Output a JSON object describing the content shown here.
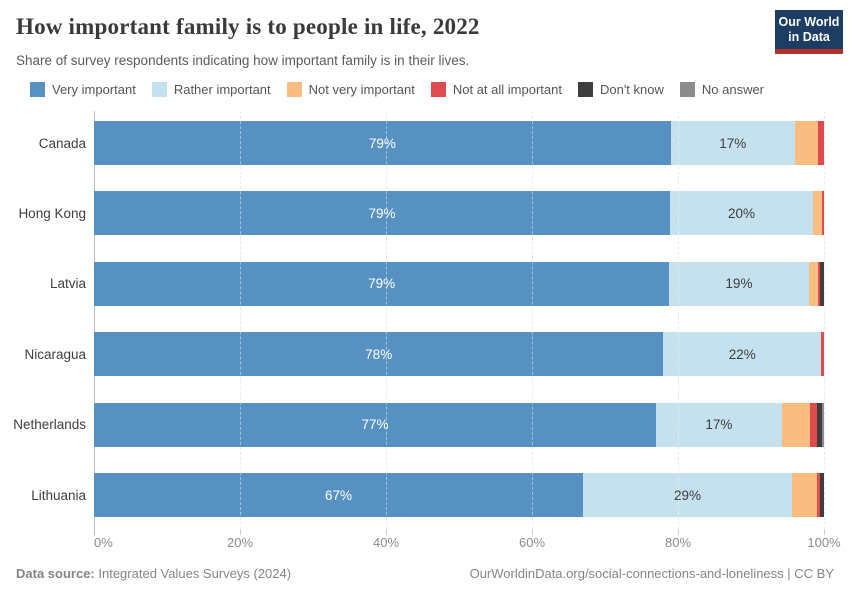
{
  "header": {
    "title": "How important family is to people in life, 2022",
    "subtitle": "Share of survey respondents indicating how important family is in their lives.",
    "logo": {
      "line1": "Our World",
      "line2": "in Data",
      "bg_color": "#1d3d63",
      "accent_color": "#b0322b"
    }
  },
  "chart_data": {
    "type": "bar",
    "stacked": true,
    "orientation": "horizontal",
    "unit": "%",
    "grid": true,
    "legend_position": "top",
    "xlim": [
      0,
      100
    ],
    "x_ticks": [
      {
        "value": 0,
        "label": "0%"
      },
      {
        "value": 20,
        "label": "20%"
      },
      {
        "value": 40,
        "label": "40%"
      },
      {
        "value": 60,
        "label": "60%"
      },
      {
        "value": 80,
        "label": "80%"
      },
      {
        "value": 100,
        "label": "100%"
      }
    ],
    "categories": [
      "Canada",
      "Hong Kong",
      "Latvia",
      "Nicaragua",
      "Netherlands",
      "Lithuania"
    ],
    "series": [
      {
        "key": "very_important",
        "name": "Very important",
        "color": "#5791c1",
        "label_color": "#ffffff",
        "values": [
          79,
          78.9,
          78.8,
          78,
          77,
          67
        ],
        "labels": [
          "79%",
          "79%",
          "79%",
          "78%",
          "77%",
          "67%"
        ]
      },
      {
        "key": "rather_important",
        "name": "Rather important",
        "color": "#c5e1ed",
        "label_color": "#3d3d3d",
        "values": [
          17,
          19.6,
          19.1,
          21.6,
          17.2,
          28.6
        ],
        "labels": [
          "17%",
          "20%",
          "19%",
          "22%",
          "17%",
          "29%"
        ]
      },
      {
        "key": "not_very_important",
        "name": "Not very important",
        "color": "#fabd81",
        "label_color": "#3d3d3d",
        "values": [
          3.2,
          1.2,
          1.3,
          0,
          3.9,
          3.5
        ],
        "labels": null
      },
      {
        "key": "not_at_all_important",
        "name": "Not at all important",
        "color": "#de4c4f",
        "label_color": "#ffffff",
        "values": [
          0.8,
          0.3,
          0.2,
          0.4,
          1.0,
          0.4
        ],
        "labels": null
      },
      {
        "key": "dont_know",
        "name": "Don't know",
        "color": "#3e3e3e",
        "label_color": "#ffffff",
        "values": [
          0,
          0,
          0.6,
          0,
          0.6,
          0.5
        ],
        "labels": null
      },
      {
        "key": "no_answer",
        "name": "No answer",
        "color": "#8c8c8c",
        "label_color": "#ffffff",
        "values": [
          0,
          0,
          0,
          0,
          0.3,
          0
        ],
        "labels": null
      }
    ]
  },
  "footer": {
    "source_label": "Data source:",
    "source_text": "Integrated Values Surveys (2024)",
    "link_text": "OurWorldinData.org/social-connections-and-loneliness | CC BY"
  }
}
